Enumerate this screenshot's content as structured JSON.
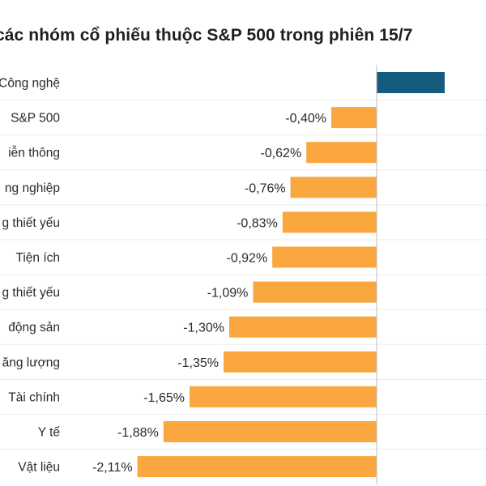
{
  "chart_data": {
    "type": "bar",
    "orientation": "horizontal",
    "title": "các nhóm cổ phiếu thuộc S&P 500 trong phiên 15/7",
    "xlabel": "",
    "ylabel": "",
    "grid": false,
    "categories": [
      "Công nghệ",
      "S&P 500",
      "Viễn thông",
      "Công nghiệp",
      "Hàng tiêu dùng thiết yếu",
      "Tiện ích",
      "Hàng tiêu dùng không thiết yếu",
      "Bất động sản",
      "Năng lượng",
      "Tài chính",
      "Y tế",
      "Vật liệu"
    ],
    "category_labels_visible": [
      "Công nghệ",
      "S&P 500",
      "iễn thông",
      "ng nghiệp",
      "g thiết yếu",
      "Tiện ích",
      "g thiết yếu",
      "động sản",
      "ăng lượng",
      "Tài chính",
      "Y tế",
      "Vật liệu"
    ],
    "values": [
      0.6,
      -0.4,
      -0.62,
      -0.76,
      -0.83,
      -0.92,
      -1.09,
      -1.3,
      -1.35,
      -1.65,
      -1.88,
      -2.11
    ],
    "value_labels": [
      "",
      "-0,40%",
      "-0,62%",
      "-0,76%",
      "-0,83%",
      "-0,92%",
      "-1,09%",
      "-1,30%",
      "-1,35%",
      "-1,65%",
      "-1,88%",
      "-2,11%"
    ],
    "colors": {
      "positive": "#155b7f",
      "negative": "#f9a73e",
      "axis": "#bdbdbd"
    }
  }
}
